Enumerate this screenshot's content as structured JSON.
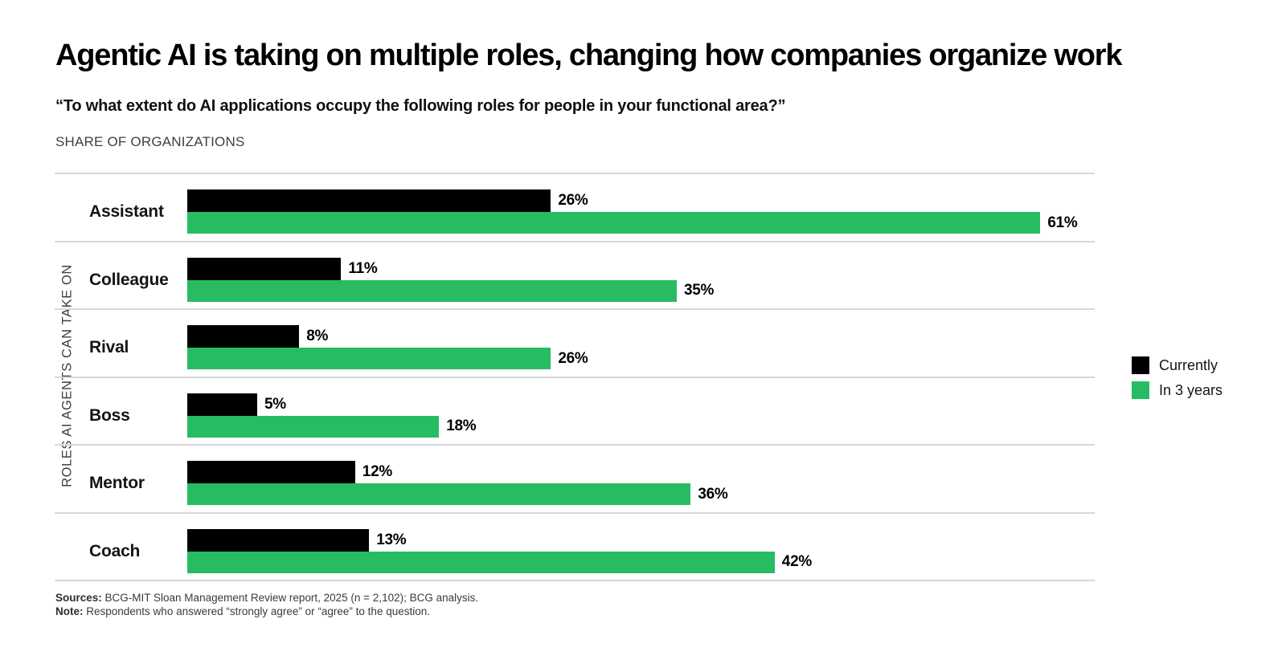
{
  "title": "Agentic AI is taking on multiple roles, changing how companies organize work",
  "subtitle": "“To what extent do AI applications occupy the following roles for people in your functional area?”",
  "eyebrow": "SHARE OF ORGANIZATIONS",
  "colors": {
    "currently": "#000000",
    "in_3_years": "#27bc62",
    "divider": "#d8d8d8",
    "muted_text": "#3f3f3f"
  },
  "legend": [
    {
      "label": "Currently",
      "color": "#000000"
    },
    {
      "label": "In 3 years",
      "color": "#27bc62"
    }
  ],
  "chart_data": {
    "type": "bar",
    "orientation": "horizontal",
    "title": "Agentic AI is taking on multiple roles, changing how companies organize work",
    "xlabel": "",
    "ylabel": "ROLES AI AGENTS CAN TAKE ON",
    "categories": [
      "Assistant",
      "Colleague",
      "Rival",
      "Boss",
      "Mentor",
      "Coach"
    ],
    "series": [
      {
        "name": "Currently",
        "color": "#000000",
        "values": [
          26,
          11,
          8,
          5,
          12,
          13
        ]
      },
      {
        "name": "In 3 years",
        "color": "#27bc62",
        "values": [
          61,
          35,
          26,
          18,
          36,
          42
        ]
      }
    ],
    "value_suffix": "%",
    "xlim": [
      0,
      65
    ],
    "grid": "row-dividers-only",
    "legend_position": "right",
    "data_labels": true
  },
  "footer": {
    "sources_label": "Sources:",
    "sources_text": " BCG-MIT Sloan Management Review report, 2025 (n = 2,102); BCG analysis.",
    "note_label": "Note:",
    "note_text": " Respondents who answered “strongly agree” or “agree” to the question."
  }
}
